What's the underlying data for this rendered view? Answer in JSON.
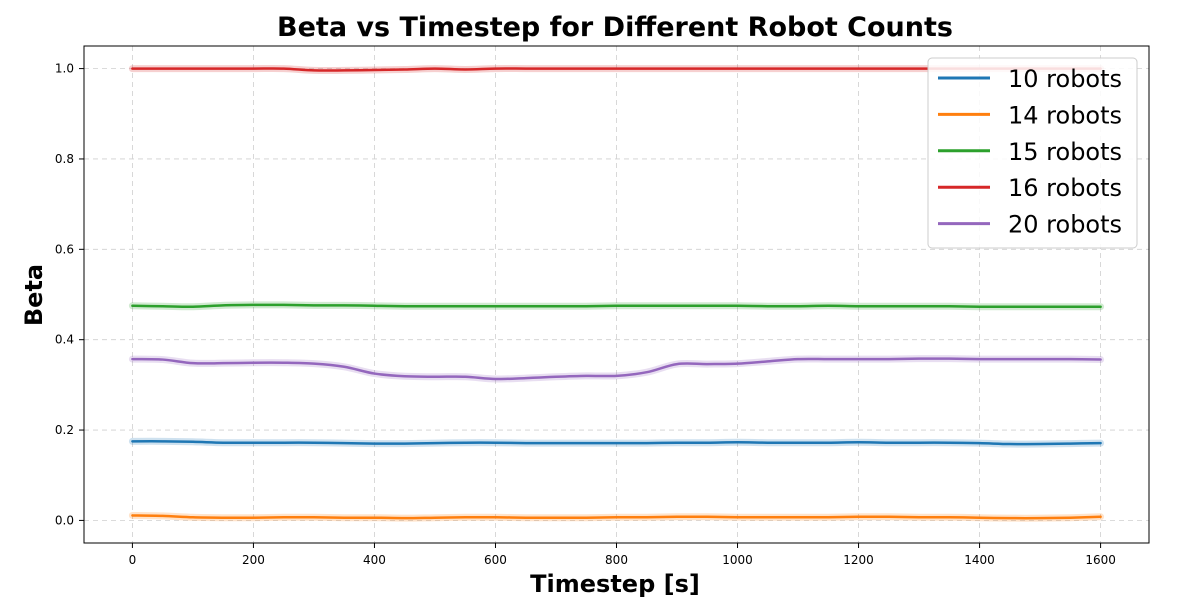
{
  "chart_data": {
    "type": "line",
    "title": "Beta vs Timestep for Different Robot Counts",
    "xlabel": "Timestep [s]",
    "ylabel": "Beta",
    "xlim": [
      -80,
      1680
    ],
    "ylim": [
      -0.05,
      1.05
    ],
    "xticks": [
      0,
      200,
      400,
      600,
      800,
      1000,
      1200,
      1400,
      1600
    ],
    "yticks": [
      0.0,
      0.2,
      0.4,
      0.6,
      0.8,
      1.0
    ],
    "grid": true,
    "legend_position": "top-right",
    "x": [
      0,
      50,
      100,
      150,
      200,
      250,
      300,
      350,
      400,
      450,
      500,
      550,
      600,
      650,
      700,
      750,
      800,
      850,
      900,
      950,
      1000,
      1050,
      1100,
      1150,
      1200,
      1250,
      1300,
      1350,
      1400,
      1450,
      1500,
      1550,
      1600
    ],
    "series": [
      {
        "name": "10 robots",
        "color": "#1f77b4",
        "values": [
          0.175,
          0.175,
          0.174,
          0.172,
          0.172,
          0.172,
          0.172,
          0.171,
          0.17,
          0.17,
          0.171,
          0.172,
          0.172,
          0.171,
          0.171,
          0.171,
          0.171,
          0.171,
          0.172,
          0.172,
          0.173,
          0.172,
          0.172,
          0.172,
          0.173,
          0.172,
          0.172,
          0.172,
          0.171,
          0.169,
          0.169,
          0.17,
          0.171
        ]
      },
      {
        "name": "14 robots",
        "color": "#ff7f0e",
        "values": [
          0.011,
          0.01,
          0.007,
          0.006,
          0.006,
          0.007,
          0.007,
          0.006,
          0.006,
          0.005,
          0.006,
          0.007,
          0.007,
          0.006,
          0.006,
          0.006,
          0.007,
          0.007,
          0.008,
          0.008,
          0.007,
          0.007,
          0.007,
          0.007,
          0.008,
          0.008,
          0.007,
          0.007,
          0.006,
          0.005,
          0.005,
          0.006,
          0.008
        ]
      },
      {
        "name": "15 robots",
        "color": "#2ca02c",
        "values": [
          0.475,
          0.474,
          0.473,
          0.476,
          0.477,
          0.477,
          0.476,
          0.476,
          0.475,
          0.474,
          0.474,
          0.474,
          0.474,
          0.474,
          0.474,
          0.474,
          0.475,
          0.475,
          0.475,
          0.475,
          0.475,
          0.474,
          0.474,
          0.475,
          0.474,
          0.474,
          0.474,
          0.474,
          0.473,
          0.473,
          0.473,
          0.473,
          0.473
        ]
      },
      {
        "name": "16 robots",
        "color": "#d62728",
        "values": [
          1.0,
          1.0,
          1.0,
          1.0,
          1.0,
          1.0,
          0.996,
          0.996,
          0.997,
          0.998,
          1.0,
          0.998,
          1.0,
          1.0,
          1.0,
          1.0,
          1.0,
          1.0,
          1.0,
          1.0,
          1.0,
          1.0,
          1.0,
          1.0,
          1.0,
          1.0,
          1.0,
          1.0,
          1.0,
          1.0,
          1.0,
          1.0,
          1.0
        ]
      },
      {
        "name": "20 robots",
        "color": "#9467bd",
        "values": [
          0.357,
          0.356,
          0.348,
          0.348,
          0.349,
          0.349,
          0.347,
          0.34,
          0.325,
          0.319,
          0.318,
          0.318,
          0.313,
          0.315,
          0.318,
          0.32,
          0.32,
          0.328,
          0.346,
          0.346,
          0.347,
          0.352,
          0.357,
          0.357,
          0.357,
          0.357,
          0.358,
          0.358,
          0.357,
          0.357,
          0.357,
          0.357,
          0.356
        ]
      }
    ]
  }
}
